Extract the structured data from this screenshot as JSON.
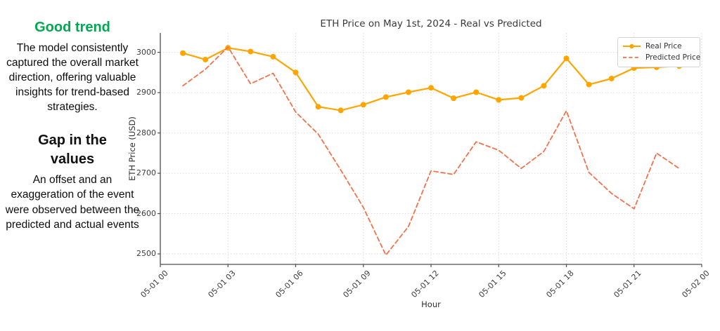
{
  "sidebar": {
    "blocks": [
      {
        "heading": "Good trend",
        "heading_color": "#00A950",
        "body": "The model consistently captured the overall market direction, offering valuable insights for trend-based strategies."
      },
      {
        "heading": "Gap in the values",
        "heading_color": "#111111",
        "body": "An offset and an exaggeration of the event were observed between the predicted and actual events"
      }
    ]
  },
  "chart": {
    "title": "ETH Price on May 1st, 2024 - Real vs Predicted",
    "xlabel": "Hour",
    "ylabel": "ETH Price (USD)",
    "legend": [
      {
        "label": "Real Price"
      },
      {
        "label": "Predicted Price"
      }
    ]
  },
  "chart_data": {
    "type": "line",
    "title": "ETH Price on May 1st, 2024 - Real vs Predicted",
    "xlabel": "Hour",
    "ylabel": "ETH Price (USD)",
    "x_hours": [
      1,
      2,
      3,
      4,
      5,
      6,
      7,
      8,
      9,
      10,
      11,
      12,
      13,
      14,
      15,
      16,
      17,
      18,
      19,
      20,
      21,
      22,
      23
    ],
    "series": [
      {
        "name": "Real Price",
        "color": "#FFA500",
        "style": "solid",
        "marker": "circle",
        "values": [
          2998,
          2982,
          3011,
          3002,
          2989,
          2950,
          2865,
          2856,
          2870,
          2889,
          2901,
          2912,
          2886,
          2901,
          2882,
          2887,
          2917,
          2985,
          2920,
          2935,
          2961,
          2963,
          2966
        ]
      },
      {
        "name": "Predicted Price",
        "color": "#F5714B",
        "style": "dashed",
        "marker": "none",
        "values": [
          2917,
          2958,
          3013,
          2922,
          2948,
          2852,
          2797,
          2708,
          2615,
          2497,
          2568,
          2706,
          2697,
          2778,
          2757,
          2712,
          2754,
          2855,
          2702,
          2650,
          2612,
          2750,
          2712
        ]
      }
    ],
    "xticks": {
      "hours": [
        0,
        3,
        6,
        9,
        12,
        15,
        18,
        21,
        24
      ],
      "labels": [
        "05-01 00",
        "05-01 03",
        "05-01 06",
        "05-01 09",
        "05-01 12",
        "05-01 15",
        "05-01 18",
        "05-01 21",
        "05-02 00"
      ]
    },
    "yticks": [
      2500,
      2600,
      2700,
      2800,
      2900,
      3000
    ],
    "xlim": [
      0,
      24
    ],
    "ylim": [
      2474,
      3048
    ],
    "grid": true,
    "grid_color": "#dcdcdc",
    "spine_color": "#4d4d4d",
    "legend_position": "upper right"
  }
}
